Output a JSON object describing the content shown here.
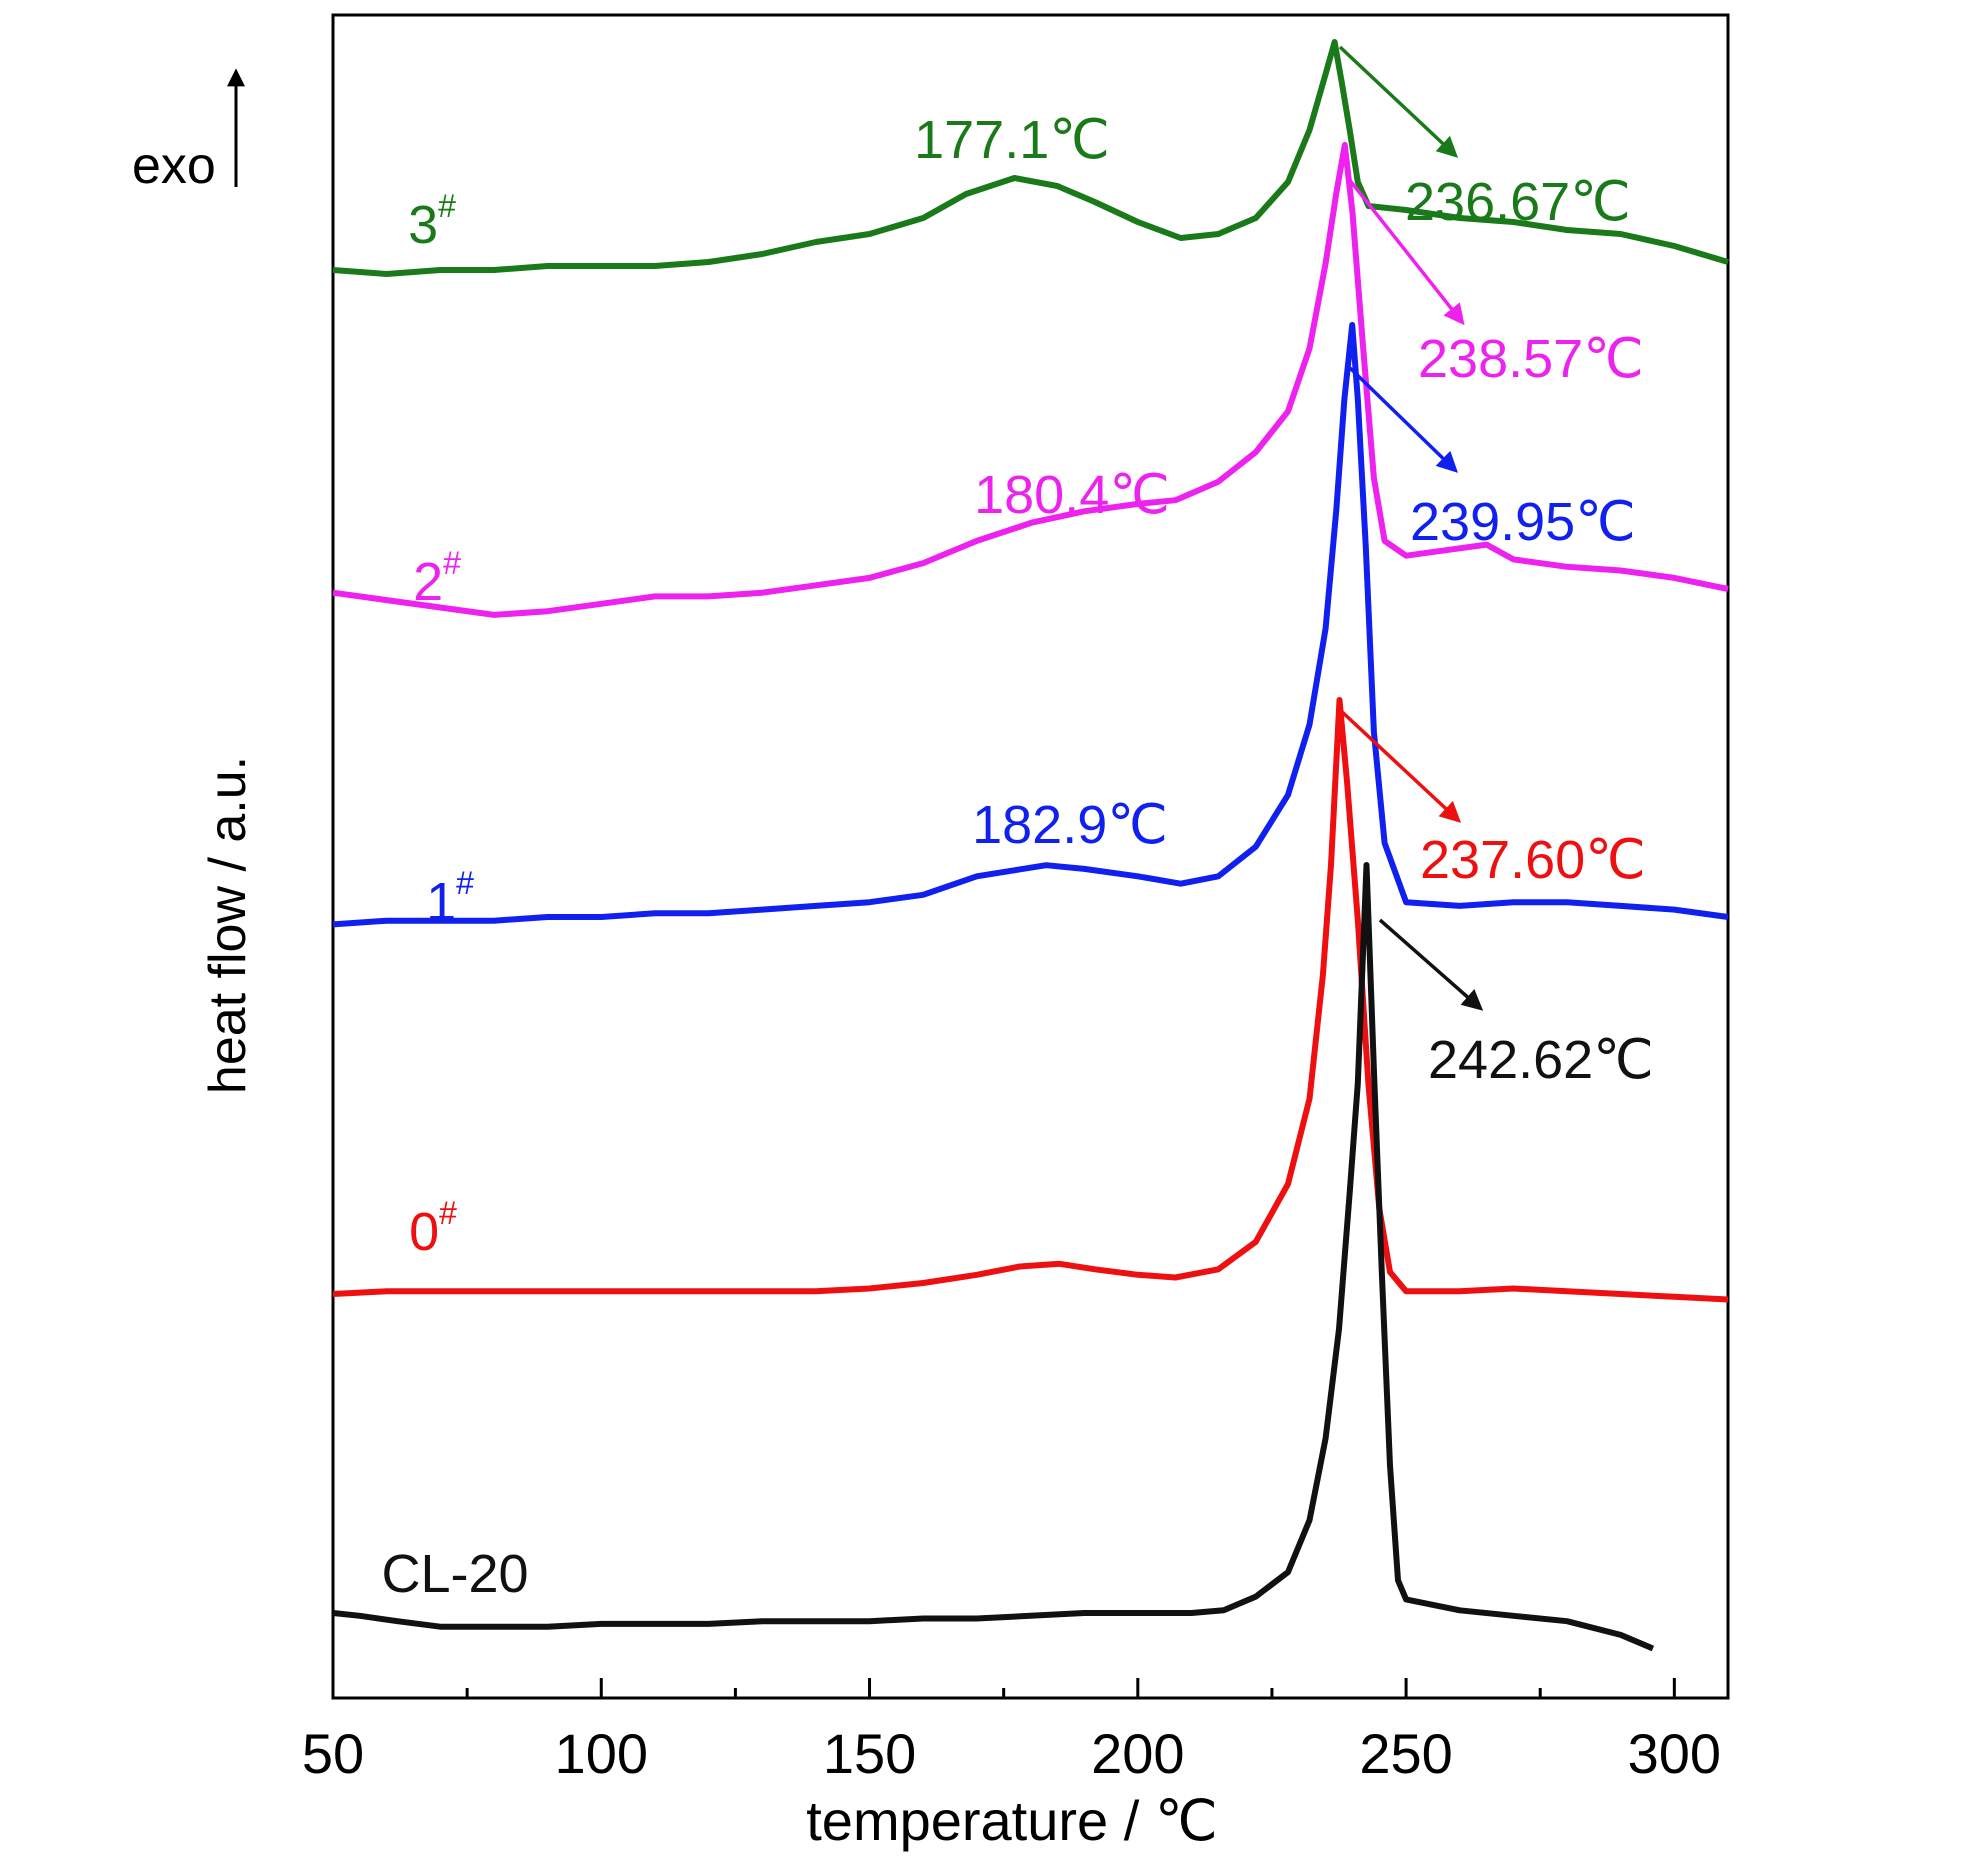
{
  "chart_data": {
    "type": "line",
    "xlabel": "temperature / ℃",
    "ylabel": "heat flow / a.u.",
    "xlim": [
      50,
      310
    ],
    "xticks": [
      50,
      100,
      150,
      200,
      250,
      300
    ],
    "xtick_labels": [
      "50",
      "100",
      "150",
      "200",
      "250",
      "300"
    ],
    "exo_label": "exo",
    "grid": false,
    "legend": "none",
    "series": [
      {
        "name": "3",
        "superscript": "#",
        "color": "#1a7a1a",
        "points": [
          [
            50,
            57
          ],
          [
            60,
            58
          ],
          [
            70,
            57
          ],
          [
            80,
            57
          ],
          [
            90,
            56
          ],
          [
            100,
            56
          ],
          [
            110,
            56
          ],
          [
            120,
            55
          ],
          [
            130,
            53
          ],
          [
            140,
            50
          ],
          [
            150,
            48
          ],
          [
            160,
            44
          ],
          [
            168,
            38
          ],
          [
            177,
            34
          ],
          [
            185,
            36
          ],
          [
            192,
            40
          ],
          [
            200,
            45
          ],
          [
            208,
            49
          ],
          [
            215,
            48
          ],
          [
            222,
            44
          ],
          [
            228,
            35
          ],
          [
            232,
            22
          ],
          [
            235,
            8
          ],
          [
            236.67,
            0
          ],
          [
            238,
            10
          ],
          [
            239.5,
            22
          ],
          [
            241,
            35
          ],
          [
            243,
            41
          ],
          [
            250,
            42
          ],
          [
            260,
            44
          ],
          [
            270,
            45
          ],
          [
            280,
            47
          ],
          [
            290,
            48
          ],
          [
            300,
            51
          ],
          [
            310,
            55
          ]
        ],
        "peak_labels": [
          {
            "text": "177.1℃"
          },
          {
            "text": "236.67℃"
          }
        ]
      },
      {
        "name": "2",
        "superscript": "#",
        "color": "#ee22ee",
        "points": [
          [
            50,
            121
          ],
          [
            60,
            123
          ],
          [
            70,
            125
          ],
          [
            80,
            127
          ],
          [
            90,
            126
          ],
          [
            100,
            124
          ],
          [
            110,
            122
          ],
          [
            120,
            122
          ],
          [
            130,
            121
          ],
          [
            140,
            119
          ],
          [
            150,
            117
          ],
          [
            160,
            113
          ],
          [
            170,
            107
          ],
          [
            180.4,
            102
          ],
          [
            190,
            99
          ],
          [
            200,
            97
          ],
          [
            207,
            96
          ],
          [
            215,
            91
          ],
          [
            222,
            83
          ],
          [
            228,
            72
          ],
          [
            232,
            55
          ],
          [
            235,
            32
          ],
          [
            237,
            13
          ],
          [
            238.57,
            0
          ],
          [
            240,
            18
          ],
          [
            242,
            55
          ],
          [
            244,
            90
          ],
          [
            246,
            107
          ],
          [
            250,
            111
          ],
          [
            260,
            109
          ],
          [
            265,
            108
          ],
          [
            270,
            112
          ],
          [
            280,
            114
          ],
          [
            290,
            115
          ],
          [
            300,
            117
          ],
          [
            310,
            120
          ]
        ],
        "peak_labels": [
          {
            "text": "180.4℃"
          },
          {
            "text": "238.57℃"
          }
        ]
      },
      {
        "name": "1",
        "superscript": "#",
        "color": "#1020ee",
        "points": [
          [
            50,
            162
          ],
          [
            60,
            161
          ],
          [
            70,
            161
          ],
          [
            80,
            161
          ],
          [
            90,
            160
          ],
          [
            100,
            160
          ],
          [
            110,
            159
          ],
          [
            120,
            159
          ],
          [
            130,
            158
          ],
          [
            140,
            157
          ],
          [
            150,
            156
          ],
          [
            160,
            154
          ],
          [
            170,
            149
          ],
          [
            182.9,
            146
          ],
          [
            190,
            147
          ],
          [
            200,
            149
          ],
          [
            208,
            151
          ],
          [
            215,
            149
          ],
          [
            222,
            141
          ],
          [
            228,
            127
          ],
          [
            232,
            108
          ],
          [
            235,
            82
          ],
          [
            237,
            50
          ],
          [
            238.5,
            20
          ],
          [
            239.95,
            0
          ],
          [
            241,
            20
          ],
          [
            242.5,
            60
          ],
          [
            244,
            110
          ],
          [
            246,
            140
          ],
          [
            250,
            156
          ],
          [
            260,
            157
          ],
          [
            270,
            156
          ],
          [
            280,
            156
          ],
          [
            290,
            157
          ],
          [
            300,
            158
          ],
          [
            310,
            160
          ]
        ],
        "peak_labels": [
          {
            "text": "182.9℃"
          },
          {
            "text": "239.95℃"
          }
        ]
      },
      {
        "name": "0",
        "superscript": "#",
        "color": "#ee1010",
        "points": [
          [
            50,
            216
          ],
          [
            60,
            215
          ],
          [
            70,
            215
          ],
          [
            80,
            215
          ],
          [
            90,
            215
          ],
          [
            100,
            215
          ],
          [
            110,
            215
          ],
          [
            120,
            215
          ],
          [
            130,
            215
          ],
          [
            140,
            215
          ],
          [
            150,
            214
          ],
          [
            160,
            212
          ],
          [
            170,
            209
          ],
          [
            178,
            206
          ],
          [
            185.4,
            205
          ],
          [
            192,
            207
          ],
          [
            200,
            209
          ],
          [
            207,
            210
          ],
          [
            215,
            207
          ],
          [
            222,
            197
          ],
          [
            228,
            176
          ],
          [
            232,
            145
          ],
          [
            234.5,
            100
          ],
          [
            236,
            60
          ],
          [
            237.6,
            0
          ],
          [
            239,
            30
          ],
          [
            241,
            80
          ],
          [
            243,
            140
          ],
          [
            245,
            185
          ],
          [
            247,
            208
          ],
          [
            250,
            215
          ],
          [
            260,
            215
          ],
          [
            270,
            214
          ],
          [
            280,
            215
          ],
          [
            290,
            216
          ],
          [
            300,
            217
          ],
          [
            310,
            218
          ]
        ],
        "peak_labels": [
          {
            "text": "237.60℃"
          }
        ]
      },
      {
        "name": "CL-20",
        "superscript": "",
        "color": "#111111",
        "points": [
          [
            50,
            274
          ],
          [
            55,
            275
          ],
          [
            62,
            277
          ],
          [
            70,
            279
          ],
          [
            80,
            279
          ],
          [
            90,
            279
          ],
          [
            100,
            278
          ],
          [
            110,
            278
          ],
          [
            120,
            278
          ],
          [
            130,
            277
          ],
          [
            140,
            277
          ],
          [
            150,
            277
          ],
          [
            160,
            276
          ],
          [
            170,
            276
          ],
          [
            180,
            275
          ],
          [
            190,
            274
          ],
          [
            200,
            274
          ],
          [
            210,
            274
          ],
          [
            216,
            273
          ],
          [
            222,
            268
          ],
          [
            228,
            259
          ],
          [
            232,
            240
          ],
          [
            235,
            210
          ],
          [
            237.5,
            170
          ],
          [
            239.5,
            120
          ],
          [
            241,
            80
          ],
          [
            242.62,
            0
          ],
          [
            244,
            75
          ],
          [
            245.5,
            150
          ],
          [
            247,
            220
          ],
          [
            248.5,
            262
          ],
          [
            250,
            269
          ],
          [
            260,
            273
          ],
          [
            270,
            275
          ],
          [
            280,
            277
          ],
          [
            290,
            282
          ],
          [
            296,
            287
          ]
        ],
        "peak_labels": [
          {
            "text": "242.62℃"
          }
        ]
      }
    ]
  }
}
